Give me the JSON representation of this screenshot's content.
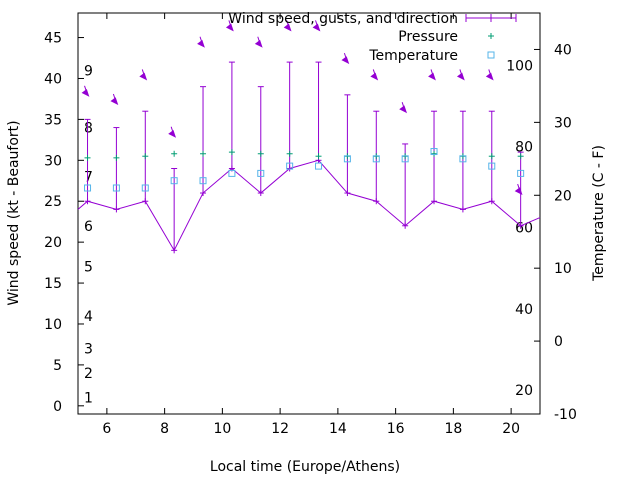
{
  "chart_data": {
    "type": "line",
    "xlabel": "Local time (Europe/Athens)",
    "ylabel": "Wind speed (kt - Beaufort)",
    "y2label": "Temperature (C - F)",
    "xlim": [
      5,
      21
    ],
    "ylim": [
      -1,
      48
    ],
    "y2lim": [
      -10,
      45
    ],
    "xticks": [
      6,
      8,
      10,
      12,
      14,
      16,
      18,
      20
    ],
    "yticks": [
      0,
      5,
      10,
      15,
      20,
      25,
      30,
      35,
      40,
      45
    ],
    "y2ticks": [
      -10,
      0,
      10,
      20,
      30,
      40
    ],
    "beaufort_labels": [
      {
        "label": "1",
        "kt": 1
      },
      {
        "label": "2",
        "kt": 4
      },
      {
        "label": "3",
        "kt": 7
      },
      {
        "label": "4",
        "kt": 11
      },
      {
        "label": "5",
        "kt": 17
      },
      {
        "label": "6",
        "kt": 22
      },
      {
        "label": "7",
        "kt": 28
      },
      {
        "label": "8",
        "kt": 34
      },
      {
        "label": "9",
        "kt": 41
      }
    ],
    "fahrenheit_labels": [
      {
        "label": "20",
        "c": -6.7
      },
      {
        "label": "40",
        "c": 4.4
      },
      {
        "label": "60",
        "c": 15.6
      },
      {
        "label": "80",
        "c": 26.7
      },
      {
        "label": "100",
        "c": 37.8
      }
    ],
    "legend": {
      "position": "top-right",
      "entries": [
        "Wind speed, gusts, and direction",
        "Pressure",
        "Temperature"
      ]
    },
    "colors": {
      "wind": "#9400d3",
      "pressure": "#009e73",
      "temperature": "#56b4e9"
    },
    "series": [
      {
        "name": "Wind speed, gusts, and direction",
        "x": [
          5.33,
          6.33,
          7.33,
          8.33,
          9.33,
          10.33,
          11.33,
          12.33,
          13.33,
          14.33,
          15.33,
          16.33,
          17.33,
          18.33,
          19.33,
          20.33
        ],
        "y": [
          25,
          24,
          25,
          19,
          26,
          29,
          26,
          29,
          30,
          26,
          25,
          22,
          25,
          24,
          25,
          22
        ],
        "gust": [
          35,
          34,
          36,
          29,
          39,
          42,
          39,
          42,
          42,
          38,
          36,
          32,
          36,
          36,
          36,
          31
        ]
      },
      {
        "name": "Pressure",
        "x": [
          5.33,
          6.33,
          7.33,
          8.33,
          9.33,
          10.33,
          11.33,
          12.33,
          13.33,
          14.33,
          15.33,
          16.33,
          17.33,
          18.33,
          19.33,
          20.33
        ],
        "y": [
          30.3,
          30.3,
          30.5,
          30.8,
          30.8,
          31.0,
          30.8,
          30.8,
          30.5,
          30.5,
          30.5,
          30.5,
          30.8,
          30.5,
          30.5,
          30.5
        ]
      },
      {
        "name": "Temperature",
        "x": [
          5.33,
          6.33,
          7.33,
          8.33,
          9.33,
          10.33,
          11.33,
          12.33,
          13.33,
          14.33,
          15.33,
          16.33,
          17.33,
          18.33,
          19.33,
          20.33
        ],
        "y": [
          21,
          21,
          21,
          22,
          22,
          23,
          23,
          24,
          24,
          25,
          25,
          25,
          26,
          25,
          24,
          23
        ]
      }
    ],
    "wind_direction_arrows": [
      {
        "x": 5.33,
        "kt": 38
      },
      {
        "x": 6.33,
        "kt": 37
      },
      {
        "x": 7.33,
        "kt": 40
      },
      {
        "x": 8.33,
        "kt": 33
      },
      {
        "x": 9.33,
        "kt": 44
      },
      {
        "x": 10.33,
        "kt": 46
      },
      {
        "x": 11.33,
        "kt": 44
      },
      {
        "x": 12.33,
        "kt": 46
      },
      {
        "x": 13.33,
        "kt": 46
      },
      {
        "x": 14.33,
        "kt": 42
      },
      {
        "x": 15.33,
        "kt": 40
      },
      {
        "x": 16.33,
        "kt": 36
      },
      {
        "x": 17.33,
        "kt": 40
      },
      {
        "x": 18.33,
        "kt": 40
      },
      {
        "x": 19.33,
        "kt": 40
      },
      {
        "x": 20.33,
        "kt": 26
      }
    ]
  }
}
